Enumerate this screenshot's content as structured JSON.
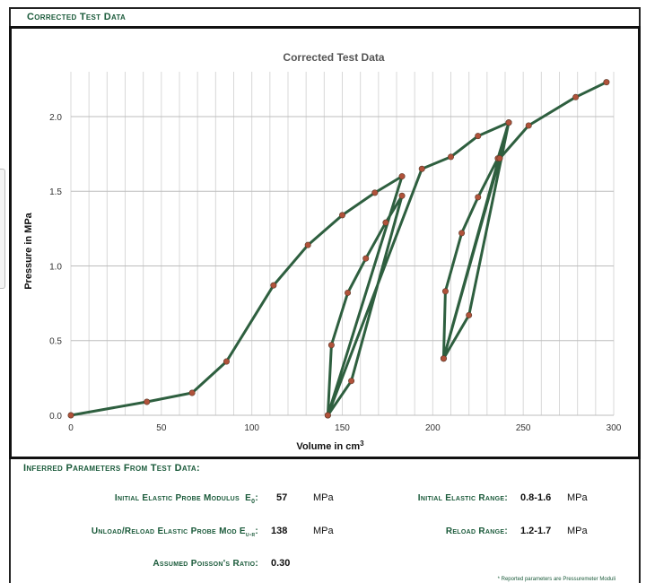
{
  "header": {
    "title": "Corrected Test Data"
  },
  "chart_data": {
    "type": "line",
    "title": "Corrected Test Data",
    "xlabel": "Volume in cm³",
    "ylabel": "Pressure in MPa",
    "xlim": [
      0,
      300
    ],
    "ylim": [
      0,
      2.3
    ],
    "xticks": [
      0,
      50,
      100,
      150,
      200,
      250,
      300
    ],
    "yticks": [
      0.0,
      0.5,
      1.0,
      1.5,
      2.0
    ],
    "xtick_labels": [
      "0",
      "50",
      "100",
      "150",
      "200",
      "250",
      "300"
    ],
    "ytick_labels": [
      "0.0",
      "0.5",
      "1.0",
      "1.5",
      "2.0"
    ],
    "grid": true,
    "series": [
      {
        "x": [
          0,
          42,
          67,
          86,
          112,
          131,
          150,
          168,
          183,
          142,
          144,
          153,
          163,
          174,
          183,
          155,
          142,
          194,
          210,
          225,
          242,
          206,
          207,
          216,
          225,
          236,
          242,
          220,
          206,
          237,
          253,
          279,
          296
        ],
        "y": [
          0.0,
          0.09,
          0.15,
          0.36,
          0.87,
          1.14,
          1.34,
          1.49,
          1.6,
          0.0,
          0.47,
          0.82,
          1.05,
          1.29,
          1.47,
          0.23,
          0.0,
          1.65,
          1.73,
          1.87,
          1.96,
          0.38,
          0.83,
          1.22,
          1.46,
          1.72,
          1.96,
          0.67,
          0.38,
          1.72,
          1.94,
          2.13,
          2.23
        ]
      }
    ]
  },
  "colors": {
    "line": "#2e5f3f",
    "marker": "#b0523a",
    "grid": "#d8d8d8",
    "label_green": "#1a5a3a"
  },
  "params": {
    "title": "Inferred Parameters From Test Data:",
    "e0_label": "Initial Elastic Probe Modulus",
    "e0_symbol": "E",
    "e0_sub": "0",
    "e0_value": "57",
    "e0_unit": "MPa",
    "eur_label": "Unload/Reload Elastic Probe Mod",
    "eur_symbol": "E",
    "eur_sub": "u-r",
    "eur_value": "138",
    "eur_unit": "MPa",
    "poisson_label": "Assumed Poisson's Ratio:",
    "poisson_value": "0.30",
    "init_range_label": "Initial Elastic Range:",
    "init_range_value": "0.8-1.6",
    "init_range_unit": "MPa",
    "reload_range_label": "Reload Range:",
    "reload_range_value": "1.2-1.7",
    "reload_range_unit": "MPa",
    "footnote": "* Reported parameters are Pressuremeter Moduli"
  }
}
